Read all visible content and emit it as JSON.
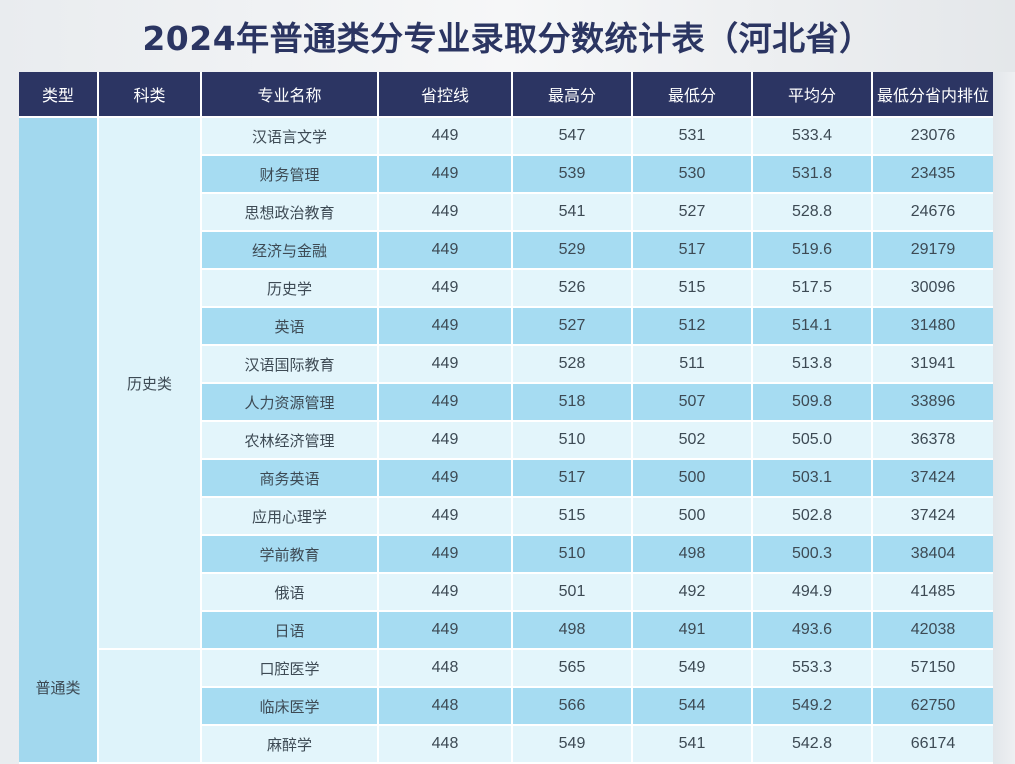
{
  "title": "2024年普通类分专业录取分数统计表（河北省）",
  "table": {
    "headers": [
      "类型",
      "科类",
      "专业名称",
      "省控线",
      "最高分",
      "最低分",
      "平均分",
      "最低分省内排位"
    ],
    "type_label": "普通类",
    "history_label": "历史类",
    "rows": [
      {
        "name": "汉语言文学",
        "line": "449",
        "max": "547",
        "min": "531",
        "avg": "533.4",
        "rank": "23076"
      },
      {
        "name": "财务管理",
        "line": "449",
        "max": "539",
        "min": "530",
        "avg": "531.8",
        "rank": "23435"
      },
      {
        "name": "思想政治教育",
        "line": "449",
        "max": "541",
        "min": "527",
        "avg": "528.8",
        "rank": "24676"
      },
      {
        "name": "经济与金融",
        "line": "449",
        "max": "529",
        "min": "517",
        "avg": "519.6",
        "rank": "29179"
      },
      {
        "name": "历史学",
        "line": "449",
        "max": "526",
        "min": "515",
        "avg": "517.5",
        "rank": "30096"
      },
      {
        "name": "英语",
        "line": "449",
        "max": "527",
        "min": "512",
        "avg": "514.1",
        "rank": "31480"
      },
      {
        "name": "汉语国际教育",
        "line": "449",
        "max": "528",
        "min": "511",
        "avg": "513.8",
        "rank": "31941"
      },
      {
        "name": "人力资源管理",
        "line": "449",
        "max": "518",
        "min": "507",
        "avg": "509.8",
        "rank": "33896"
      },
      {
        "name": "农林经济管理",
        "line": "449",
        "max": "510",
        "min": "502",
        "avg": "505.0",
        "rank": "36378"
      },
      {
        "name": "商务英语",
        "line": "449",
        "max": "517",
        "min": "500",
        "avg": "503.1",
        "rank": "37424"
      },
      {
        "name": "应用心理学",
        "line": "449",
        "max": "515",
        "min": "500",
        "avg": "502.8",
        "rank": "37424"
      },
      {
        "name": "学前教育",
        "line": "449",
        "max": "510",
        "min": "498",
        "avg": "500.3",
        "rank": "38404"
      },
      {
        "name": "俄语",
        "line": "449",
        "max": "501",
        "min": "492",
        "avg": "494.9",
        "rank": "41485"
      },
      {
        "name": "日语",
        "line": "449",
        "max": "498",
        "min": "491",
        "avg": "493.6",
        "rank": "42038"
      },
      {
        "name": "口腔医学",
        "line": "448",
        "max": "565",
        "min": "549",
        "avg": "553.3",
        "rank": "57150"
      },
      {
        "name": "临床医学",
        "line": "448",
        "max": "566",
        "min": "544",
        "avg": "549.2",
        "rank": "62750"
      },
      {
        "name": "麻醉学",
        "line": "448",
        "max": "549",
        "min": "541",
        "avg": "542.8",
        "rank": "66174"
      }
    ]
  }
}
